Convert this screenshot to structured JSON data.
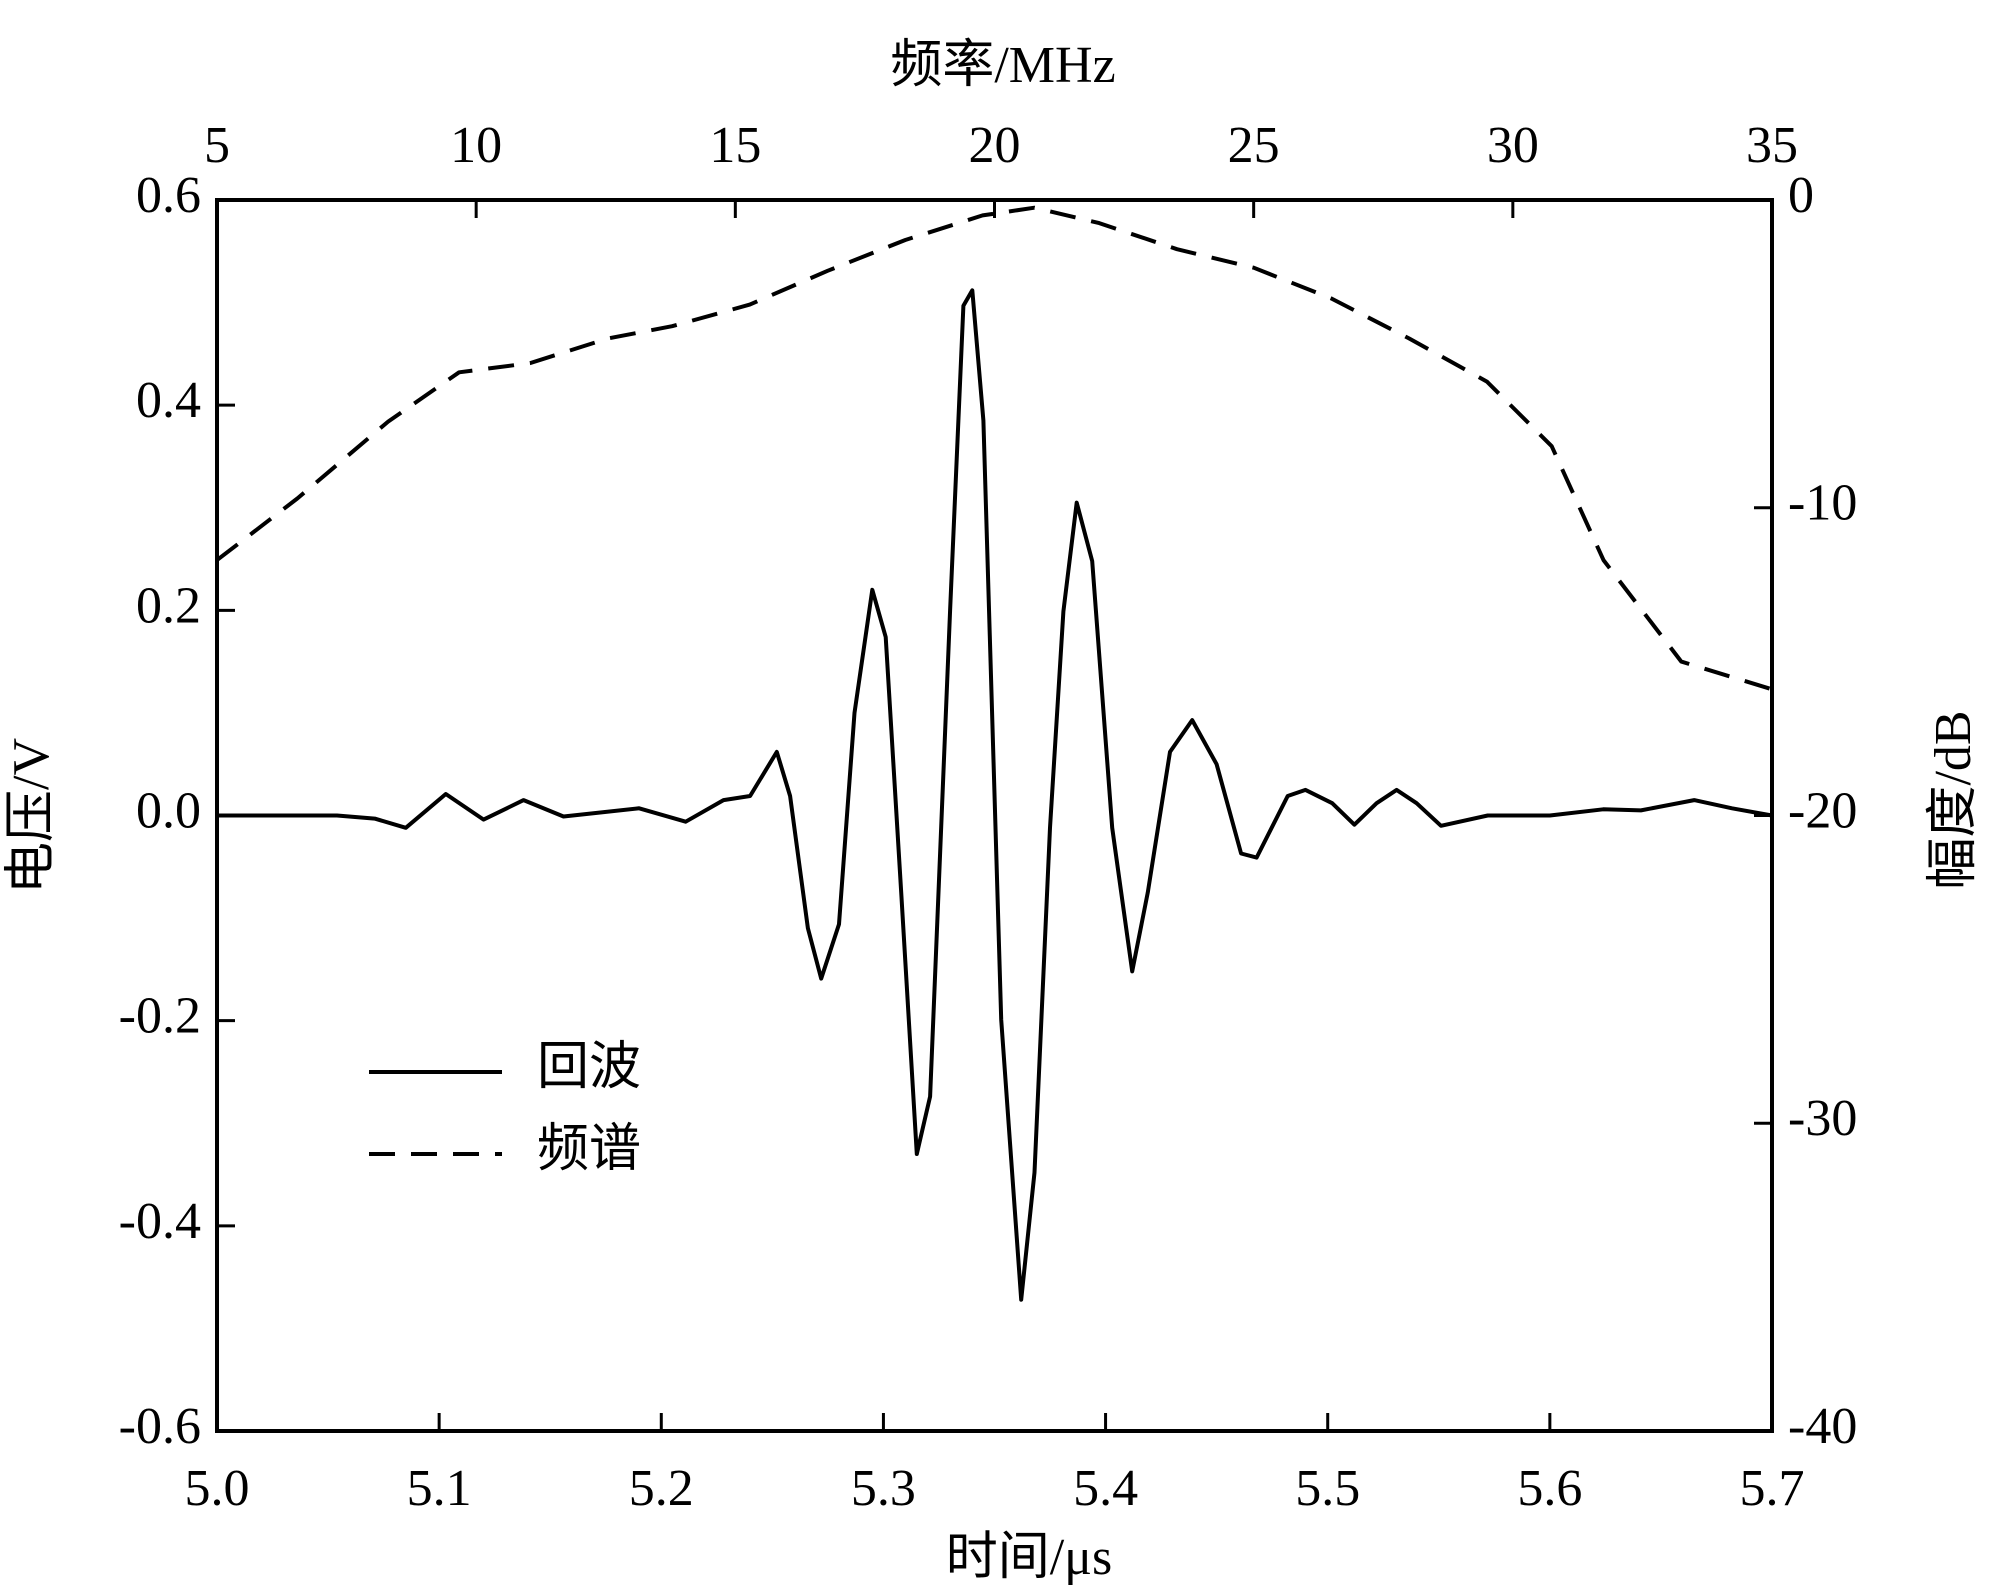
{
  "chart_data": {
    "type": "line",
    "xlabel": "时间/μs",
    "ylabel": "电压/V",
    "x2label": "频率/MHz",
    "y2label": "幅度/dB",
    "xlim": [
      5.0,
      5.7
    ],
    "xticks": [
      {
        "value": 5,
        "label": "5.0"
      },
      5.1,
      5.2,
      5.3,
      5.4,
      5.5,
      5.6,
      5.7
    ],
    "ylim": [
      -0.6,
      0.6
    ],
    "yticks": [
      -0.6,
      -0.4,
      -0.2,
      {
        "value": 0,
        "label": "0.0"
      },
      0.2,
      0.4,
      0.6
    ],
    "x2lim": [
      5,
      35
    ],
    "x2ticks": [
      5,
      10,
      15,
      20,
      25,
      30,
      35
    ],
    "y2lim": [
      -40,
      0
    ],
    "y2ticks": [
      -40,
      -30,
      -20,
      -10,
      0
    ],
    "legend": "lower left",
    "series": [
      {
        "name": "回波",
        "color": "#000000",
        "dash": false,
        "x": [
          5.0,
          5.054,
          5.071,
          5.085,
          5.103,
          5.12,
          5.138,
          5.156,
          5.19,
          5.211,
          5.228,
          5.24,
          5.252,
          5.258,
          5.266,
          5.272,
          5.28,
          5.287,
          5.295,
          5.301,
          5.308,
          5.315,
          5.321,
          5.33,
          5.336,
          5.34,
          5.345,
          5.353,
          5.362,
          5.368,
          5.375,
          5.381,
          5.387,
          5.394,
          5.403,
          5.412,
          5.419,
          5.429,
          5.439,
          5.45,
          5.461,
          5.468,
          5.482,
          5.49,
          5.502,
          5.512,
          5.522,
          5.531,
          5.54,
          5.551,
          5.572,
          5.6,
          5.624,
          5.641,
          5.665,
          5.682,
          5.7
        ],
        "values": [
          0,
          0,
          -0.003,
          -0.012,
          0.021,
          -0.004,
          0.015,
          -0.001,
          0.007,
          -0.006,
          0.015,
          0.019,
          0.062,
          0.019,
          -0.11,
          -0.159,
          -0.106,
          0.1,
          0.22,
          0.174,
          -0.075,
          -0.33,
          -0.274,
          0.2,
          0.497,
          0.512,
          0.385,
          -0.199,
          -0.472,
          -0.348,
          -0.012,
          0.199,
          0.305,
          0.248,
          -0.012,
          -0.152,
          -0.075,
          0.062,
          0.093,
          0.05,
          -0.037,
          -0.041,
          0.019,
          0.025,
          0.012,
          -0.009,
          0.012,
          0.025,
          0.012,
          -0.01,
          0,
          0,
          0.006,
          0.005,
          0.015,
          0.007,
          0
        ]
      },
      {
        "name": "频谱",
        "color": "#000000",
        "dash": true,
        "axis": "y2",
        "x": [
          5,
          6.55,
          8.3,
          9.67,
          11.04,
          12.54,
          13.78,
          15.28,
          16.78,
          18.28,
          19.77,
          20.77,
          22.02,
          23.52,
          25.0,
          26.5,
          28.0,
          29.5,
          30.75,
          31.75,
          33.25,
          35
        ],
        "values": [
          -11.7,
          -9.7,
          -7.2,
          -5.6,
          -5.3,
          -4.5,
          -4.1,
          -3.4,
          -2.3,
          -1.3,
          -0.5,
          -0.25,
          -0.75,
          -1.6,
          -2.2,
          -3.2,
          -4.5,
          -5.9,
          -8.0,
          -11.7,
          -15.0,
          -15.9
        ]
      }
    ]
  }
}
